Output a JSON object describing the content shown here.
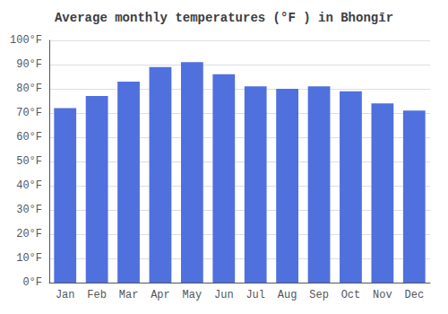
{
  "chart_data": {
    "type": "bar",
    "title": "Average monthly temperatures (°F ) in Bhongīr",
    "categories": [
      "Jan",
      "Feb",
      "Mar",
      "Apr",
      "May",
      "Jun",
      "Jul",
      "Aug",
      "Sep",
      "Oct",
      "Nov",
      "Dec"
    ],
    "values": [
      72,
      77,
      83,
      89,
      91,
      86,
      81,
      80,
      81,
      79,
      74,
      71
    ],
    "ylim": [
      0,
      100
    ],
    "yticks": [
      {
        "value": 0,
        "label": "0°F"
      },
      {
        "value": 10,
        "label": "10°F"
      },
      {
        "value": 20,
        "label": "20°F"
      },
      {
        "value": 30,
        "label": "30°F"
      },
      {
        "value": 40,
        "label": "40°F"
      },
      {
        "value": 50,
        "label": "50°F"
      },
      {
        "value": 60,
        "label": "60°F"
      },
      {
        "value": 70,
        "label": "70°F"
      },
      {
        "value": 80,
        "label": "80°F"
      },
      {
        "value": 90,
        "label": "90°F"
      },
      {
        "value": 100,
        "label": "100°F"
      }
    ],
    "grid": true
  }
}
